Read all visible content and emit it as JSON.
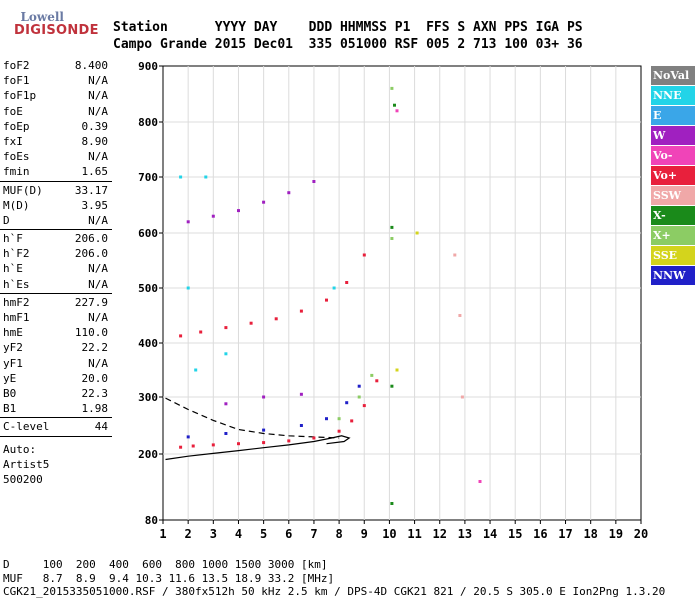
{
  "logo": {
    "line1": "Lowell",
    "line2": "DIGISONDE"
  },
  "header": {
    "row1": "Station      YYYY DAY    DDD HHMMSS P1  FFS S AXN PPS IGA PS",
    "row2": "Campo Grande 2015 Dec01  335 051000 RSF 005 2 713 100 03+ 36"
  },
  "params": [
    [
      {
        "name": "foF2",
        "value": "8.400"
      },
      {
        "name": "foF1",
        "value": "N/A"
      },
      {
        "name": "foF1p",
        "value": "N/A"
      },
      {
        "name": "foE",
        "value": "N/A"
      },
      {
        "name": "foEp",
        "value": "0.39"
      },
      {
        "name": "fxI",
        "value": "8.90"
      },
      {
        "name": "foEs",
        "value": "N/A"
      },
      {
        "name": "fmin",
        "value": "1.65"
      }
    ],
    [
      {
        "name": "MUF(D)",
        "value": "33.17"
      },
      {
        "name": "M(D)",
        "value": "3.95"
      },
      {
        "name": "D",
        "value": "N/A"
      }
    ],
    [
      {
        "name": "h`F",
        "value": "206.0"
      },
      {
        "name": "h`F2",
        "value": "206.0"
      },
      {
        "name": "h`E",
        "value": "N/A"
      },
      {
        "name": "h`Es",
        "value": "N/A"
      }
    ],
    [
      {
        "name": "hmF2",
        "value": "227.9"
      },
      {
        "name": "hmF1",
        "value": "N/A"
      },
      {
        "name": "hmE",
        "value": "110.0"
      },
      {
        "name": "yF2",
        "value": "22.2"
      },
      {
        "name": "yF1",
        "value": "N/A"
      },
      {
        "name": "yE",
        "value": "20.0"
      },
      {
        "name": "B0",
        "value": "22.3"
      },
      {
        "name": "B1",
        "value": "1.98"
      }
    ],
    [
      {
        "name": "C-level",
        "value": "44"
      }
    ]
  ],
  "autoscaling": {
    "line1": "Auto:",
    "line2": "Artist5",
    "line3": "500200"
  },
  "legend": [
    {
      "label": "NoVal",
      "color": "#808080"
    },
    {
      "label": "NNE",
      "color": "#22d4e8"
    },
    {
      "label": "E",
      "color": "#3aa6e8"
    },
    {
      "label": "W",
      "color": "#a020c0"
    },
    {
      "label": "Vo-",
      "color": "#f044b8"
    },
    {
      "label": "Vo+",
      "color": "#e8203c"
    },
    {
      "label": "SSW",
      "color": "#f0a8a8"
    },
    {
      "label": "X-",
      "color": "#1a8a1a"
    },
    {
      "label": "X+",
      "color": "#8ccc64"
    },
    {
      "label": "SSE",
      "color": "#d4d41c"
    },
    {
      "label": "NNW",
      "color": "#2020c8"
    }
  ],
  "footer": {
    "line1": "D     100  200  400  600  800 1000 1500 3000 [km]",
    "line2": "MUF   8.7  8.9  9.4 10.3 11.6 13.5 18.9 33.2 [MHz]",
    "line3": "CGK21_2015335051000.RSF / 380fx512h 50 kHz 2.5 km / DPS-4D CGK21 821 / 20.5 S 305.0 E Ion2Png 1.3.20"
  },
  "chart_data": {
    "type": "scatter",
    "xlim": [
      1,
      20
    ],
    "ylim": [
      80,
      900
    ],
    "xticks": [
      1,
      2,
      3,
      4,
      5,
      6,
      7,
      8,
      9,
      10,
      11,
      12,
      13,
      14,
      15,
      16,
      17,
      18,
      19,
      20
    ],
    "yticks": [
      80,
      200,
      300,
      400,
      500,
      600,
      700,
      800,
      900
    ],
    "grid": true,
    "series": [
      {
        "name": "Vo+",
        "color": "#e8203c",
        "points": [
          [
            1.7,
            212
          ],
          [
            2.2,
            214
          ],
          [
            3,
            216
          ],
          [
            4,
            218
          ],
          [
            5,
            220
          ],
          [
            6,
            223
          ],
          [
            7,
            228
          ],
          [
            8,
            240
          ],
          [
            8.5,
            258
          ],
          [
            9,
            285
          ],
          [
            9.5,
            330
          ],
          [
            1.7,
            413
          ],
          [
            2.5,
            420
          ],
          [
            3.5,
            428
          ],
          [
            4.5,
            436
          ],
          [
            5.5,
            444
          ],
          [
            6.5,
            458
          ],
          [
            7.5,
            478
          ],
          [
            8.3,
            510
          ],
          [
            9,
            560
          ]
        ]
      },
      {
        "name": "W",
        "color": "#a020c0",
        "points": [
          [
            2,
            620
          ],
          [
            3,
            630
          ],
          [
            4,
            640
          ],
          [
            5,
            655
          ],
          [
            6,
            672
          ],
          [
            7,
            692
          ],
          [
            3.5,
            288
          ],
          [
            5,
            300
          ],
          [
            6.5,
            305
          ]
        ]
      },
      {
        "name": "NNW",
        "color": "#2020c8",
        "points": [
          [
            2,
            230
          ],
          [
            3.5,
            236
          ],
          [
            5,
            242
          ],
          [
            6.5,
            250
          ],
          [
            7.5,
            262
          ],
          [
            8.3,
            290
          ],
          [
            8.8,
            320
          ]
        ]
      },
      {
        "name": "X+",
        "color": "#8ccc64",
        "points": [
          [
            8,
            262
          ],
          [
            8.8,
            300
          ],
          [
            9.3,
            340
          ],
          [
            10.1,
            590
          ],
          [
            10.1,
            860
          ]
        ]
      },
      {
        "name": "X-",
        "color": "#1a8a1a",
        "points": [
          [
            10.1,
            320
          ],
          [
            10.1,
            610
          ],
          [
            10.2,
            830
          ],
          [
            10.1,
            110
          ]
        ]
      },
      {
        "name": "NNE",
        "color": "#22d4e8",
        "points": [
          [
            1.7,
            700
          ],
          [
            2,
            500
          ],
          [
            2.3,
            350
          ],
          [
            2.7,
            700
          ],
          [
            3.5,
            380
          ],
          [
            7.8,
            500
          ]
        ]
      },
      {
        "name": "SSW",
        "color": "#f0a8a8",
        "points": [
          [
            12.6,
            560
          ],
          [
            12.8,
            450
          ],
          [
            12.9,
            300
          ]
        ]
      },
      {
        "name": "SSE",
        "color": "#d4d41c",
        "points": [
          [
            10.3,
            350
          ],
          [
            11.1,
            600
          ]
        ]
      },
      {
        "name": "Vo-",
        "color": "#f044b8",
        "points": [
          [
            10.3,
            820
          ],
          [
            13.6,
            150
          ]
        ]
      }
    ],
    "profile": [
      [
        1.1,
        190
      ],
      [
        2,
        196
      ],
      [
        3,
        201
      ],
      [
        4,
        206
      ],
      [
        5,
        211
      ],
      [
        6,
        216
      ],
      [
        7,
        222
      ],
      [
        7.7,
        228
      ],
      [
        8.1,
        232
      ],
      [
        8.4,
        228
      ],
      [
        8.2,
        222
      ],
      [
        7.5,
        218
      ]
    ],
    "profile_dashed": [
      [
        1.1,
        298
      ],
      [
        2,
        278
      ],
      [
        3,
        259
      ],
      [
        4,
        243
      ],
      [
        5,
        236
      ],
      [
        6,
        232
      ],
      [
        7,
        230
      ],
      [
        8,
        228
      ]
    ]
  }
}
